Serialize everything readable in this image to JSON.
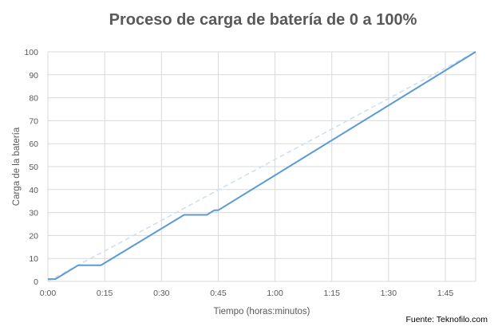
{
  "chart_data": {
    "type": "line",
    "title": "Proceso de carga de batería de 0 a 100%",
    "xlabel": "Tiempo (horas:minutos)",
    "ylabel": "Carga de la batería",
    "x_unit": "minutes",
    "xlim": [
      0,
      113
    ],
    "ylim": [
      0,
      100
    ],
    "x_ticks": [
      {
        "value": 0,
        "label": "0:00"
      },
      {
        "value": 15,
        "label": "0:15"
      },
      {
        "value": 30,
        "label": "0:30"
      },
      {
        "value": 45,
        "label": "0:45"
      },
      {
        "value": 60,
        "label": "1:00"
      },
      {
        "value": 75,
        "label": "1:15"
      },
      {
        "value": 90,
        "label": "1:30"
      },
      {
        "value": 105,
        "label": "1:45"
      }
    ],
    "y_ticks": [
      0,
      10,
      20,
      30,
      40,
      50,
      60,
      70,
      80,
      90,
      100
    ],
    "grid": true,
    "series": [
      {
        "style": "solid",
        "color": "#5b9bd5",
        "x": [
          0,
          1,
          2,
          8,
          13,
          14,
          36,
          42,
          44,
          45,
          113
        ],
        "y": [
          1,
          1,
          1,
          7,
          7,
          7,
          29,
          29,
          31,
          31,
          100
        ]
      },
      {
        "style": "dashed",
        "color": "#cfe0ef",
        "x": [
          0,
          113
        ],
        "y": [
          0,
          100
        ]
      }
    ],
    "source_note": "Fuente: Teknofilo.com"
  }
}
